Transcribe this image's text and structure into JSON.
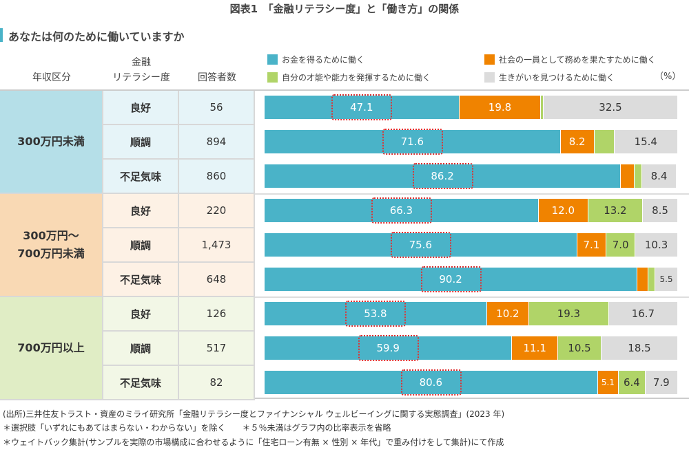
{
  "title": "図表1　「金融リテラシー度」と「働き方」の関係",
  "question": "あなたは何のために働いていますか",
  "headers": {
    "income": "年収区分",
    "literacy_1": "金融",
    "literacy_2": "リテラシー度",
    "count": "回答者数",
    "unit": "（%）"
  },
  "colors": {
    "money": "#4ab3c8",
    "society": "#f08300",
    "talent": "#b0d468",
    "purpose": "#dcdcdc",
    "highlight": "#e03030"
  },
  "chart_data": {
    "type": "bar",
    "stacked": true,
    "orientation": "horizontal",
    "xlim": [
      0,
      100
    ],
    "legend": [
      "お金を得るために働く",
      "社会の一員として務めを果たすために働く",
      "自分の才能や能力を発揮するために働く",
      "生きがいを見つけるために働く"
    ],
    "groups": [
      {
        "label": [
          "300万円未満"
        ],
        "bg": "#b5dfe8",
        "cell": "#e6f4f8",
        "rows": [
          {
            "literacy": "良好",
            "n": "56",
            "values": [
              47.1,
              19.8,
              0.6,
              32.5
            ],
            "labels": [
              "47.1",
              "19.8",
              "",
              "32.5"
            ]
          },
          {
            "literacy": "順調",
            "n": "894",
            "values": [
              71.6,
              8.2,
              4.8,
              15.4
            ],
            "labels": [
              "71.6",
              "8.2",
              "",
              "15.4"
            ]
          },
          {
            "literacy": "不足気味",
            "n": "860",
            "values": [
              86.2,
              3.3,
              1.8,
              8.4
            ],
            "labels": [
              "86.2",
              "",
              "",
              "8.4"
            ]
          }
        ]
      },
      {
        "label": [
          "300万円～",
          "700万円未満"
        ],
        "bg": "#f9d9b4",
        "cell": "#fdf1e5",
        "rows": [
          {
            "literacy": "良好",
            "n": "220",
            "values": [
              66.3,
              12.0,
              13.2,
              8.5
            ],
            "labels": [
              "66.3",
              "12.0",
              "13.2",
              "8.5"
            ]
          },
          {
            "literacy": "順調",
            "n": "1,473",
            "values": [
              75.6,
              7.1,
              7.0,
              10.3
            ],
            "labels": [
              "75.6",
              "7.1",
              "7.0",
              "10.3"
            ]
          },
          {
            "literacy": "不足気味",
            "n": "648",
            "values": [
              90.2,
              2.7,
              1.6,
              5.5
            ],
            "labels": [
              "90.2",
              "",
              "",
              "5.5"
            ]
          }
        ]
      },
      {
        "label": [
          "700万円以上"
        ],
        "bg": "#e0edc5",
        "cell": "#f2f7e6",
        "rows": [
          {
            "literacy": "良好",
            "n": "126",
            "values": [
              53.8,
              10.2,
              19.3,
              16.7
            ],
            "labels": [
              "53.8",
              "10.2",
              "19.3",
              "16.7"
            ]
          },
          {
            "literacy": "順調",
            "n": "517",
            "values": [
              59.9,
              11.1,
              10.5,
              18.5
            ],
            "labels": [
              "59.9",
              "11.1",
              "10.5",
              "18.5"
            ]
          },
          {
            "literacy": "不足気味",
            "n": "82",
            "values": [
              80.6,
              5.1,
              6.4,
              7.9
            ],
            "labels": [
              "80.6",
              "5.1",
              "6.4",
              "7.9"
            ]
          }
        ]
      }
    ]
  },
  "notes": [
    "(出所)三井住友トラスト・資産のミライ研究所「金融リテラシー度とファイナンシャル ウェルビーイングに関する実態調査」(2023 年)",
    "＊選択肢「いずれにもあてはまらない・わからない」を除く　　＊５％未満はグラフ内の比率表示を省略",
    "＊ウェイトバック集計(サンプルを実際の市場構成に合わせるように「住宅ローン有無 × 性別 × 年代」で重み付けをして集計)にて作成"
  ]
}
